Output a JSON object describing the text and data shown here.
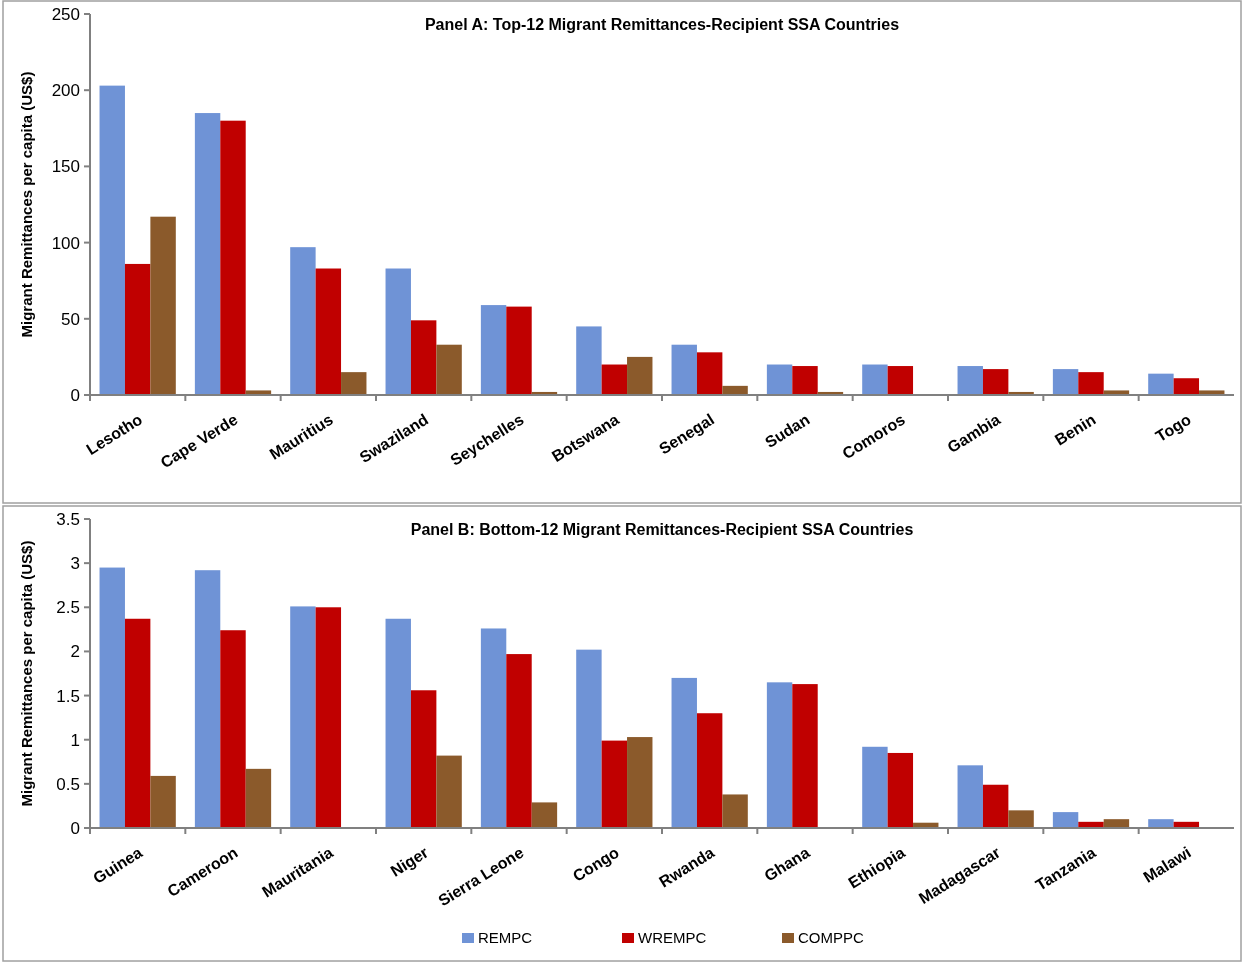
{
  "chart_data": [
    {
      "type": "bar",
      "title": "Panel A: Top-12 Migrant Remittances-Recipient  SSA Countries",
      "ylabel": "Migrant Remittances per capita (US$)",
      "categories": [
        "Lesotho",
        "Cape Verde",
        "Mauritius",
        "Swaziland",
        "Seychelles",
        "Botswana",
        "Senegal",
        "Sudan",
        "Comoros",
        "Gambia",
        "Benin",
        "Togo"
      ],
      "series": [
        {
          "color": "#6f93d6",
          "values": [
            203,
            185,
            97,
            83,
            59,
            45,
            33,
            20,
            20,
            19,
            17,
            14
          ]
        },
        {
          "color": "#c00000",
          "values": [
            86,
            180,
            83,
            49,
            58,
            20,
            28,
            19,
            19,
            17,
            15,
            11
          ]
        },
        {
          "color": "#8b5a2b",
          "values": [
            117,
            3,
            15,
            33,
            2,
            25,
            6,
            2,
            0,
            2,
            3,
            3
          ]
        }
      ],
      "ylim": [
        0,
        250
      ],
      "yticks": [
        0,
        50,
        100,
        150,
        200,
        250
      ],
      "grid": false,
      "legend": false
    },
    {
      "type": "bar",
      "title": "Panel B: Bottom-12  Migrant Remittances-Recipient  SSA Countries",
      "ylabel": "Migrant Remittances per capita (US$)",
      "categories": [
        "Guinea",
        "Cameroon",
        "Mauritania",
        "Niger",
        "Sierra Leone",
        "Congo",
        "Rwanda",
        "Ghana",
        "Ethiopia",
        "Madagascar",
        "Tanzania",
        "Malawi"
      ],
      "series": [
        {
          "name": "REMPC",
          "color": "#6f93d6",
          "values": [
            2.95,
            2.92,
            2.51,
            2.37,
            2.26,
            2.02,
            1.7,
            1.65,
            0.92,
            0.71,
            0.18,
            0.1
          ]
        },
        {
          "name": "WREMPC",
          "color": "#c00000",
          "values": [
            2.37,
            2.24,
            2.5,
            1.56,
            1.97,
            0.99,
            1.3,
            1.63,
            0.85,
            0.49,
            0.07,
            0.07
          ]
        },
        {
          "name": "COMPPC",
          "color": "#8b5a2b",
          "values": [
            0.59,
            0.67,
            0.01,
            0.82,
            0.29,
            1.03,
            0.38,
            0.01,
            0.06,
            0.2,
            0.1,
            0
          ]
        }
      ],
      "ylim": [
        0,
        3.5
      ],
      "yticks": [
        0,
        0.5,
        1,
        1.5,
        2,
        2.5,
        3,
        3.5
      ],
      "grid": false,
      "legend": "bottom"
    }
  ]
}
